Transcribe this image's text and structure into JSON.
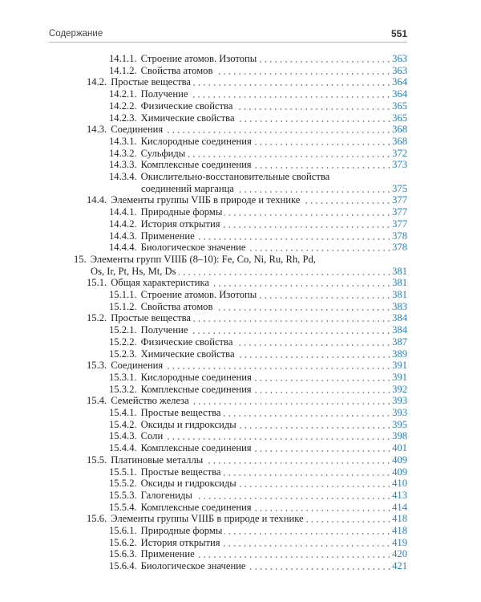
{
  "header": {
    "title": "Содержание",
    "page_number": "551"
  },
  "colors": {
    "page_link": "#2f7fb5",
    "text": "#222222"
  },
  "entries": [
    {
      "level": 2,
      "num": "14.1.1.",
      "title": "Строение атомов. Изотопы",
      "page": "363"
    },
    {
      "level": 2,
      "num": "14.1.2.",
      "title": "Свойства атомов",
      "page": "363"
    },
    {
      "level": 1,
      "num": "14.2.",
      "title": "Простые вещества",
      "page": "364"
    },
    {
      "level": 2,
      "num": "14.2.1.",
      "title": "Получение",
      "page": "364"
    },
    {
      "level": 2,
      "num": "14.2.2.",
      "title": "Физические свойства",
      "page": "365"
    },
    {
      "level": 2,
      "num": "14.2.3.",
      "title": "Химические свойства",
      "page": "365"
    },
    {
      "level": 1,
      "num": "14.3.",
      "title": "Соединения",
      "page": "368"
    },
    {
      "level": 2,
      "num": "14.3.1.",
      "title": "Кислородные соединения",
      "page": "368"
    },
    {
      "level": 2,
      "num": "14.3.2.",
      "title": "Сульфиды",
      "page": "372"
    },
    {
      "level": 2,
      "num": "14.3.3.",
      "title": "Комплексные соединения",
      "page": "373"
    },
    {
      "level": 2,
      "num": "14.3.4.",
      "title": "Окислительно-восстановительные свойства",
      "title_cont": "соединений марганца",
      "page": "375"
    },
    {
      "level": 1,
      "num": "14.4.",
      "title": "Элементы группы VIIБ в природе и технике",
      "page": "377"
    },
    {
      "level": 2,
      "num": "14.4.1.",
      "title": "Природные формы",
      "page": "377"
    },
    {
      "level": 2,
      "num": "14.4.2.",
      "title": "История открытия",
      "page": "377"
    },
    {
      "level": 2,
      "num": "14.4.3.",
      "title": "Применение",
      "page": "378"
    },
    {
      "level": 2,
      "num": "14.4.4.",
      "title": "Биологическое значение",
      "page": "378"
    },
    {
      "level": 0,
      "num": "15.",
      "title": "Элементы групп VIIIБ (8–10): Fe, Co, Ni, Ru, Rh, Pd,",
      "title_cont": "Os, Ir, Pt, Hs, Mt, Ds",
      "page": "381"
    },
    {
      "level": 1,
      "num": "15.1.",
      "title": "Общая характеристика",
      "page": "381"
    },
    {
      "level": 2,
      "num": "15.1.1.",
      "title": "Строение атомов. Изотопы",
      "page": "381"
    },
    {
      "level": 2,
      "num": "15.1.2.",
      "title": "Свойства атомов",
      "page": "383"
    },
    {
      "level": 1,
      "num": "15.2.",
      "title": "Простые вещества",
      "page": "384"
    },
    {
      "level": 2,
      "num": "15.2.1.",
      "title": "Получение",
      "page": "384"
    },
    {
      "level": 2,
      "num": "15.2.2.",
      "title": "Физические свойства",
      "page": "387"
    },
    {
      "level": 2,
      "num": "15.2.3.",
      "title": "Химические свойства",
      "page": "389"
    },
    {
      "level": 1,
      "num": "15.3.",
      "title": "Соединения",
      "page": "391"
    },
    {
      "level": 2,
      "num": "15.3.1.",
      "title": "Кислородные соединения",
      "page": "391"
    },
    {
      "level": 2,
      "num": "15.3.2.",
      "title": "Комплексные соединения",
      "page": "392"
    },
    {
      "level": 1,
      "num": "15.4.",
      "title": "Семейство железа",
      "page": "393"
    },
    {
      "level": 2,
      "num": "15.4.1.",
      "title": "Простые вещества",
      "page": "393"
    },
    {
      "level": 2,
      "num": "15.4.2.",
      "title": "Оксиды и гидроксиды",
      "page": "395"
    },
    {
      "level": 2,
      "num": "15.4.3.",
      "title": "Соли",
      "page": "398"
    },
    {
      "level": 2,
      "num": "15.4.4.",
      "title": "Комплексные соединения",
      "page": "401"
    },
    {
      "level": 1,
      "num": "15.5.",
      "title": "Платиновые металлы",
      "page": "409"
    },
    {
      "level": 2,
      "num": "15.5.1.",
      "title": "Простые вещества",
      "page": "409"
    },
    {
      "level": 2,
      "num": "15.5.2.",
      "title": "Оксиды и гидроксиды",
      "page": "410"
    },
    {
      "level": 2,
      "num": "15.5.3.",
      "title": "Галогениды",
      "page": "413"
    },
    {
      "level": 2,
      "num": "15.5.4.",
      "title": "Комплексные соединения",
      "page": "414"
    },
    {
      "level": 1,
      "num": "15.6.",
      "title": "Элементы группы VIIIБ в природе и технике",
      "page": "418"
    },
    {
      "level": 2,
      "num": "15.6.1.",
      "title": "Природные формы",
      "page": "418"
    },
    {
      "level": 2,
      "num": "15.6.2.",
      "title": "История открытия",
      "page": "419"
    },
    {
      "level": 2,
      "num": "15.6.3.",
      "title": "Применение",
      "page": "420"
    },
    {
      "level": 2,
      "num": "15.6.4.",
      "title": "Биологическое значение",
      "page": "421"
    }
  ]
}
